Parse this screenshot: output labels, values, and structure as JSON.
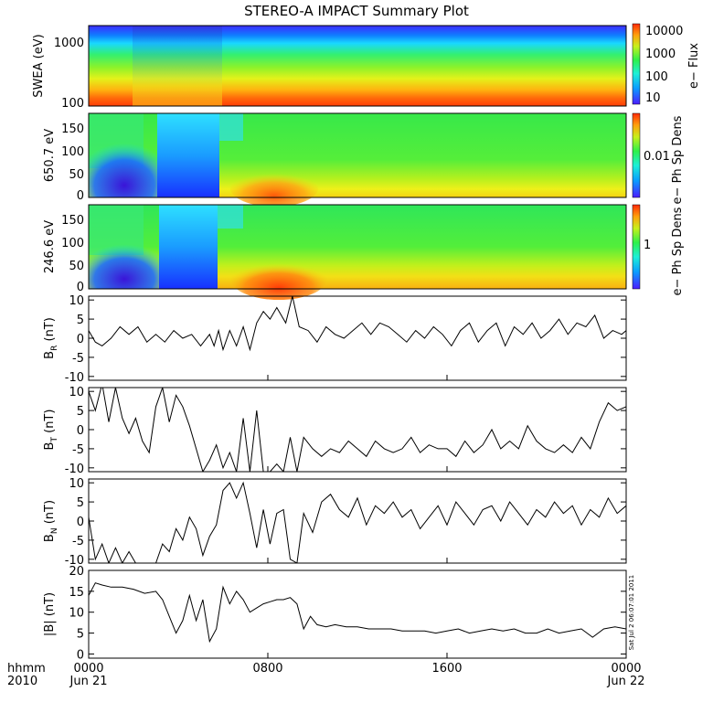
{
  "title": "STEREO-A IMPACT Summary Plot",
  "timestamp": "Sat Jul  2 06:07:01 2011",
  "colors": {
    "trace": "#000000",
    "background": "#ffffff"
  },
  "chart_data": [
    {
      "type": "heatmap",
      "name": "swea-spectrogram",
      "ylabel": "SWEA (eV)",
      "yscale": "log",
      "ylim": [
        95,
        2200
      ],
      "yticks": [
        "100",
        "1000"
      ],
      "colorbar": {
        "label": "e− Flux",
        "ticks": [
          "10",
          "100",
          "1000",
          "10000"
        ],
        "scale": "log"
      },
      "description_values": {
        "low_energy_flux": "high (red)",
        "high_energy_flux": "low (blue)"
      }
    },
    {
      "type": "heatmap",
      "name": "pad-650",
      "ylabel": "650.7 eV",
      "ylim": [
        -5,
        180
      ],
      "yticks": [
        "0",
        "50",
        "100",
        "150"
      ],
      "colorbar": {
        "label": "e− Ph Sp Dens",
        "ticks": [
          "0.01"
        ],
        "scale": "log"
      }
    },
    {
      "type": "heatmap",
      "name": "pad-246",
      "ylabel": "246.6 eV",
      "ylim": [
        -5,
        180
      ],
      "yticks": [
        "0",
        "50",
        "100",
        "150"
      ],
      "colorbar": {
        "label": "e− Ph Sp Dens",
        "ticks": [
          "1"
        ],
        "scale": "log"
      }
    },
    {
      "type": "line",
      "name": "BR",
      "ylabel_main": "B",
      "ylabel_sub": "R",
      "ylabel_unit": " (nT)",
      "ylim": [
        -11,
        11
      ],
      "yticks": [
        "-10",
        "-5",
        "0",
        "5",
        "10"
      ],
      "x": [
        0,
        0.3,
        0.6,
        1,
        1.4,
        1.8,
        2.2,
        2.6,
        3,
        3.4,
        3.8,
        4.2,
        4.6,
        5,
        5.4,
        5.6,
        5.8,
        6,
        6.3,
        6.6,
        6.9,
        7.2,
        7.5,
        7.8,
        8.1,
        8.4,
        8.8,
        9.1,
        9.4,
        9.8,
        10.2,
        10.6,
        11,
        11.4,
        11.8,
        12.2,
        12.6,
        13,
        13.4,
        13.8,
        14.2,
        14.6,
        15,
        15.4,
        15.8,
        16.2,
        16.6,
        17,
        17.4,
        17.8,
        18.2,
        18.6,
        19,
        19.4,
        19.8,
        20.2,
        20.6,
        21,
        21.4,
        21.8,
        22.2,
        22.6,
        23,
        23.4,
        23.8,
        24
      ],
      "y": [
        2,
        -1,
        -2,
        0,
        3,
        1,
        3,
        -1,
        1,
        -1,
        2,
        0,
        1,
        -2,
        1,
        -2,
        2,
        -3,
        2,
        -2,
        3,
        -3,
        4,
        7,
        5,
        8,
        4,
        11,
        3,
        2,
        -1,
        3,
        1,
        0,
        2,
        4,
        1,
        4,
        3,
        1,
        -1,
        2,
        0,
        3,
        1,
        -2,
        2,
        4,
        -1,
        2,
        4,
        -2,
        3,
        1,
        4,
        0,
        2,
        5,
        1,
        4,
        3,
        6,
        0,
        2,
        1,
        2
      ],
      "xlim": [
        0,
        24
      ]
    },
    {
      "type": "line",
      "name": "BT",
      "ylabel_main": "B",
      "ylabel_sub": "T",
      "ylabel_unit": " (nT)",
      "ylim": [
        -11,
        11
      ],
      "yticks": [
        "-10",
        "-5",
        "0",
        "5",
        "10"
      ],
      "x": [
        0,
        0.3,
        0.6,
        0.9,
        1.2,
        1.5,
        1.8,
        2.1,
        2.4,
        2.7,
        3,
        3.3,
        3.6,
        3.9,
        4.2,
        4.5,
        4.8,
        5.1,
        5.4,
        5.7,
        6,
        6.3,
        6.6,
        6.9,
        7.2,
        7.5,
        7.8,
        8.1,
        8.4,
        8.7,
        9,
        9.3,
        9.6,
        10,
        10.4,
        10.8,
        11.2,
        11.6,
        12,
        12.4,
        12.8,
        13.2,
        13.6,
        14,
        14.4,
        14.8,
        15.2,
        15.6,
        16,
        16.4,
        16.8,
        17.2,
        17.6,
        18,
        18.4,
        18.8,
        19.2,
        19.6,
        20,
        20.4,
        20.8,
        21.2,
        21.6,
        22,
        22.4,
        22.8,
        23.2,
        23.6,
        24
      ],
      "y": [
        10,
        5,
        12,
        2,
        11,
        3,
        -1,
        3,
        -3,
        -6,
        6,
        11,
        2,
        9,
        6,
        1,
        -5,
        -11,
        -8,
        -4,
        -10,
        -6,
        -11,
        3,
        -11,
        5,
        -11,
        -11,
        -9,
        -11,
        -2,
        -11,
        -2,
        -5,
        -7,
        -5,
        -6,
        -3,
        -5,
        -7,
        -3,
        -5,
        -6,
        -5,
        -2,
        -6,
        -4,
        -5,
        -5,
        -7,
        -3,
        -6,
        -4,
        0,
        -5,
        -3,
        -5,
        1,
        -3,
        -5,
        -6,
        -4,
        -6,
        -2,
        -5,
        2,
        7,
        5,
        6
      ],
      "xlim": [
        0,
        24
      ]
    },
    {
      "type": "line",
      "name": "BN",
      "ylabel_main": "B",
      "ylabel_sub": "N",
      "ylabel_unit": " (nT)",
      "ylim": [
        -11,
        11
      ],
      "yticks": [
        "-10",
        "-5",
        "0",
        "5",
        "10"
      ],
      "x": [
        0,
        0.3,
        0.6,
        0.9,
        1.2,
        1.5,
        1.8,
        2.1,
        2.4,
        2.7,
        3,
        3.3,
        3.6,
        3.9,
        4.2,
        4.5,
        4.8,
        5.1,
        5.4,
        5.7,
        6,
        6.3,
        6.6,
        6.9,
        7.2,
        7.5,
        7.8,
        8.1,
        8.4,
        8.7,
        9,
        9.3,
        9.6,
        10,
        10.4,
        10.8,
        11.2,
        11.6,
        12,
        12.4,
        12.8,
        13.2,
        13.6,
        14,
        14.4,
        14.8,
        15.2,
        15.6,
        16,
        16.4,
        16.8,
        17.2,
        17.6,
        18,
        18.4,
        18.8,
        19.2,
        19.6,
        20,
        20.4,
        20.8,
        21.2,
        21.6,
        22,
        22.4,
        22.8,
        23.2,
        23.6,
        24
      ],
      "y": [
        1,
        -10,
        -6,
        -11,
        -7,
        -11,
        -8,
        -11,
        -11,
        -11,
        -11,
        -6,
        -8,
        -2,
        -5,
        1,
        -2,
        -9,
        -4,
        -1,
        8,
        10,
        6,
        10,
        2,
        -7,
        3,
        -6,
        2,
        3,
        -10,
        -11,
        2,
        -3,
        5,
        7,
        3,
        1,
        6,
        -1,
        4,
        2,
        5,
        1,
        3,
        -2,
        1,
        4,
        -1,
        5,
        2,
        -1,
        3,
        4,
        0,
        5,
        2,
        -1,
        3,
        1,
        5,
        2,
        4,
        -1,
        3,
        1,
        6,
        2,
        4
      ],
      "xlim": [
        0,
        24
      ]
    },
    {
      "type": "line",
      "name": "Bmag",
      "ylabel": "|B| (nT)",
      "ylim": [
        -1,
        20
      ],
      "yticks": [
        "0",
        "5",
        "10",
        "15",
        "20"
      ],
      "x": [
        0,
        0.3,
        0.6,
        1,
        1.5,
        2,
        2.5,
        3,
        3.3,
        3.6,
        3.9,
        4.2,
        4.5,
        4.8,
        5.1,
        5.4,
        5.7,
        6,
        6.3,
        6.6,
        6.9,
        7.2,
        7.5,
        7.8,
        8.1,
        8.4,
        8.7,
        9,
        9.3,
        9.6,
        9.9,
        10.2,
        10.6,
        11,
        11.5,
        12,
        12.5,
        13,
        13.5,
        14,
        14.5,
        15,
        15.5,
        16,
        16.5,
        17,
        17.5,
        18,
        18.5,
        19,
        19.5,
        20,
        20.5,
        21,
        21.5,
        22,
        22.5,
        23,
        23.5,
        24
      ],
      "y": [
        14,
        17,
        16.5,
        16,
        16,
        15.5,
        14.5,
        15,
        13,
        9,
        5,
        8,
        14,
        8,
        13,
        3,
        6,
        16,
        12,
        15,
        13,
        10,
        11,
        12,
        12.5,
        13,
        13,
        13.5,
        12,
        6,
        9,
        7,
        6.5,
        7,
        6.5,
        6.5,
        6,
        6,
        6,
        5.5,
        5.5,
        5.5,
        5,
        5.5,
        6,
        5,
        5.5,
        6,
        5.5,
        6,
        5,
        5,
        6,
        5,
        5.5,
        6,
        4,
        6,
        6.5,
        6
      ],
      "xlim": [
        0,
        24
      ]
    }
  ],
  "xaxis": {
    "row1": [
      "hhmm",
      "0000",
      "0800",
      "1600",
      "0000"
    ],
    "row2": [
      "2010",
      "Jun 21",
      "",
      "",
      "Jun 22"
    ],
    "xlim": [
      0,
      24
    ],
    "ticks_hours": [
      0,
      8,
      16,
      24
    ]
  }
}
